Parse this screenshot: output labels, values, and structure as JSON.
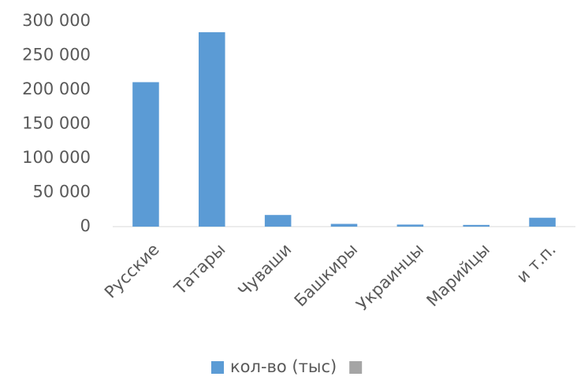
{
  "chart_data": {
    "type": "bar",
    "categories": [
      "Русские",
      "Татары",
      "Чуваши",
      "Башкиры",
      "Украинцы",
      "Марийцы",
      "и т.п."
    ],
    "series": [
      {
        "name": "кол-во (тыс)",
        "color": "#5b9bd5",
        "values": [
          211000,
          284000,
          17000,
          4000,
          3000,
          2500,
          13000
        ]
      },
      {
        "color": "#a5a5a5",
        "values": [
          null,
          null,
          null,
          null,
          null,
          null,
          null
        ]
      }
    ],
    "ylim": [
      0,
      300000
    ],
    "yticks": [
      0,
      {
        "value": 50000,
        "label": "50 000"
      },
      {
        "value": 100000,
        "label": "100 000"
      },
      {
        "value": 150000,
        "label": "150 000"
      },
      {
        "value": 200000,
        "label": "200 000"
      },
      {
        "value": 250000,
        "label": "250 000"
      },
      {
        "value": 300000,
        "label": "300 000"
      }
    ],
    "legend": "bottom"
  }
}
